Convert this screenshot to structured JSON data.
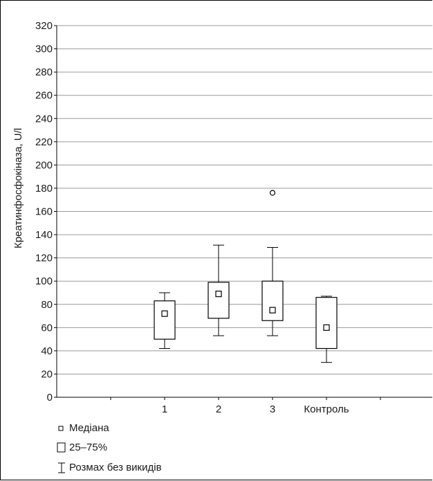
{
  "chart_data": {
    "type": "boxplot",
    "ylabel": "Креатинфосфокіназа, U/l",
    "xlabel": "",
    "ylim": [
      0,
      320
    ],
    "yticks": [
      0,
      20,
      40,
      60,
      80,
      100,
      120,
      140,
      160,
      180,
      200,
      220,
      240,
      260,
      280,
      300,
      320
    ],
    "grid": true,
    "categories": [
      "1",
      "2",
      "3",
      "Контроль"
    ],
    "series": [
      {
        "category": "1",
        "median": 72,
        "q1": 50,
        "q3": 83,
        "whisker_low": 42,
        "whisker_high": 90,
        "outliers": []
      },
      {
        "category": "2",
        "median": 89,
        "q1": 68,
        "q3": 99,
        "whisker_low": 53,
        "whisker_high": 131,
        "outliers": []
      },
      {
        "category": "3",
        "median": 75,
        "q1": 66,
        "q3": 100,
        "whisker_low": 53,
        "whisker_high": 129,
        "outliers": [
          176
        ]
      },
      {
        "category": "Контроль",
        "median": 60,
        "q1": 42,
        "q3": 86,
        "whisker_low": 30,
        "whisker_high": 87,
        "outliers": []
      }
    ]
  },
  "legend": {
    "median": "Медіана",
    "box": "25–75%",
    "range": "Розмах без викидів"
  }
}
